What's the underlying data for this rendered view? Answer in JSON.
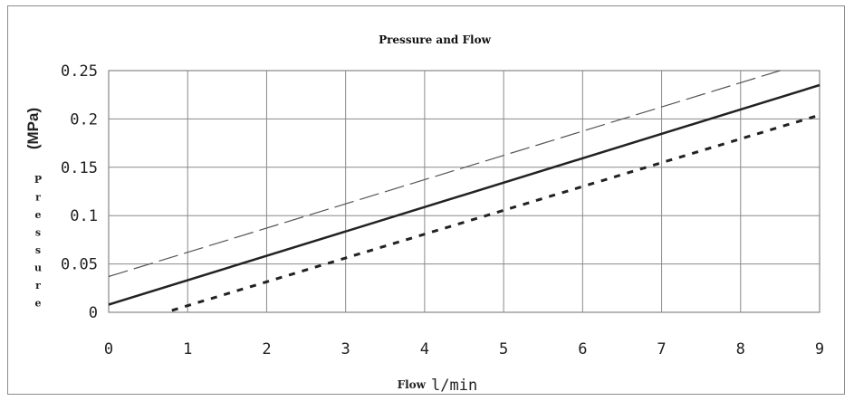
{
  "chart_data": {
    "type": "line",
    "title": "Pressure and Flow",
    "xlabel_word": "Flow",
    "xlabel_unit": "l/min",
    "ylabel_unit": "(MPa)",
    "ylabel_word": "Pressure",
    "xlim": [
      0,
      9
    ],
    "ylim": [
      0,
      0.25
    ],
    "x_ticks": [
      "0",
      "1",
      "2",
      "3",
      "4",
      "5",
      "6",
      "7",
      "8",
      "9"
    ],
    "y_ticks": [
      "0",
      "0.05",
      "0.1",
      "0.15",
      "0.2",
      "0.25"
    ],
    "grid": true,
    "legend": "none",
    "series": [
      {
        "style": "long-dash",
        "x": [
          0,
          8.5
        ],
        "y": [
          0.037,
          0.25
        ],
        "color": "#555555"
      },
      {
        "style": "solid",
        "x": [
          0,
          9
        ],
        "y": [
          0.008,
          0.235
        ],
        "color": "#222222"
      },
      {
        "style": "short-dash",
        "x": [
          0.8,
          9
        ],
        "y": [
          0.002,
          0.204
        ],
        "color": "#222222"
      }
    ]
  }
}
